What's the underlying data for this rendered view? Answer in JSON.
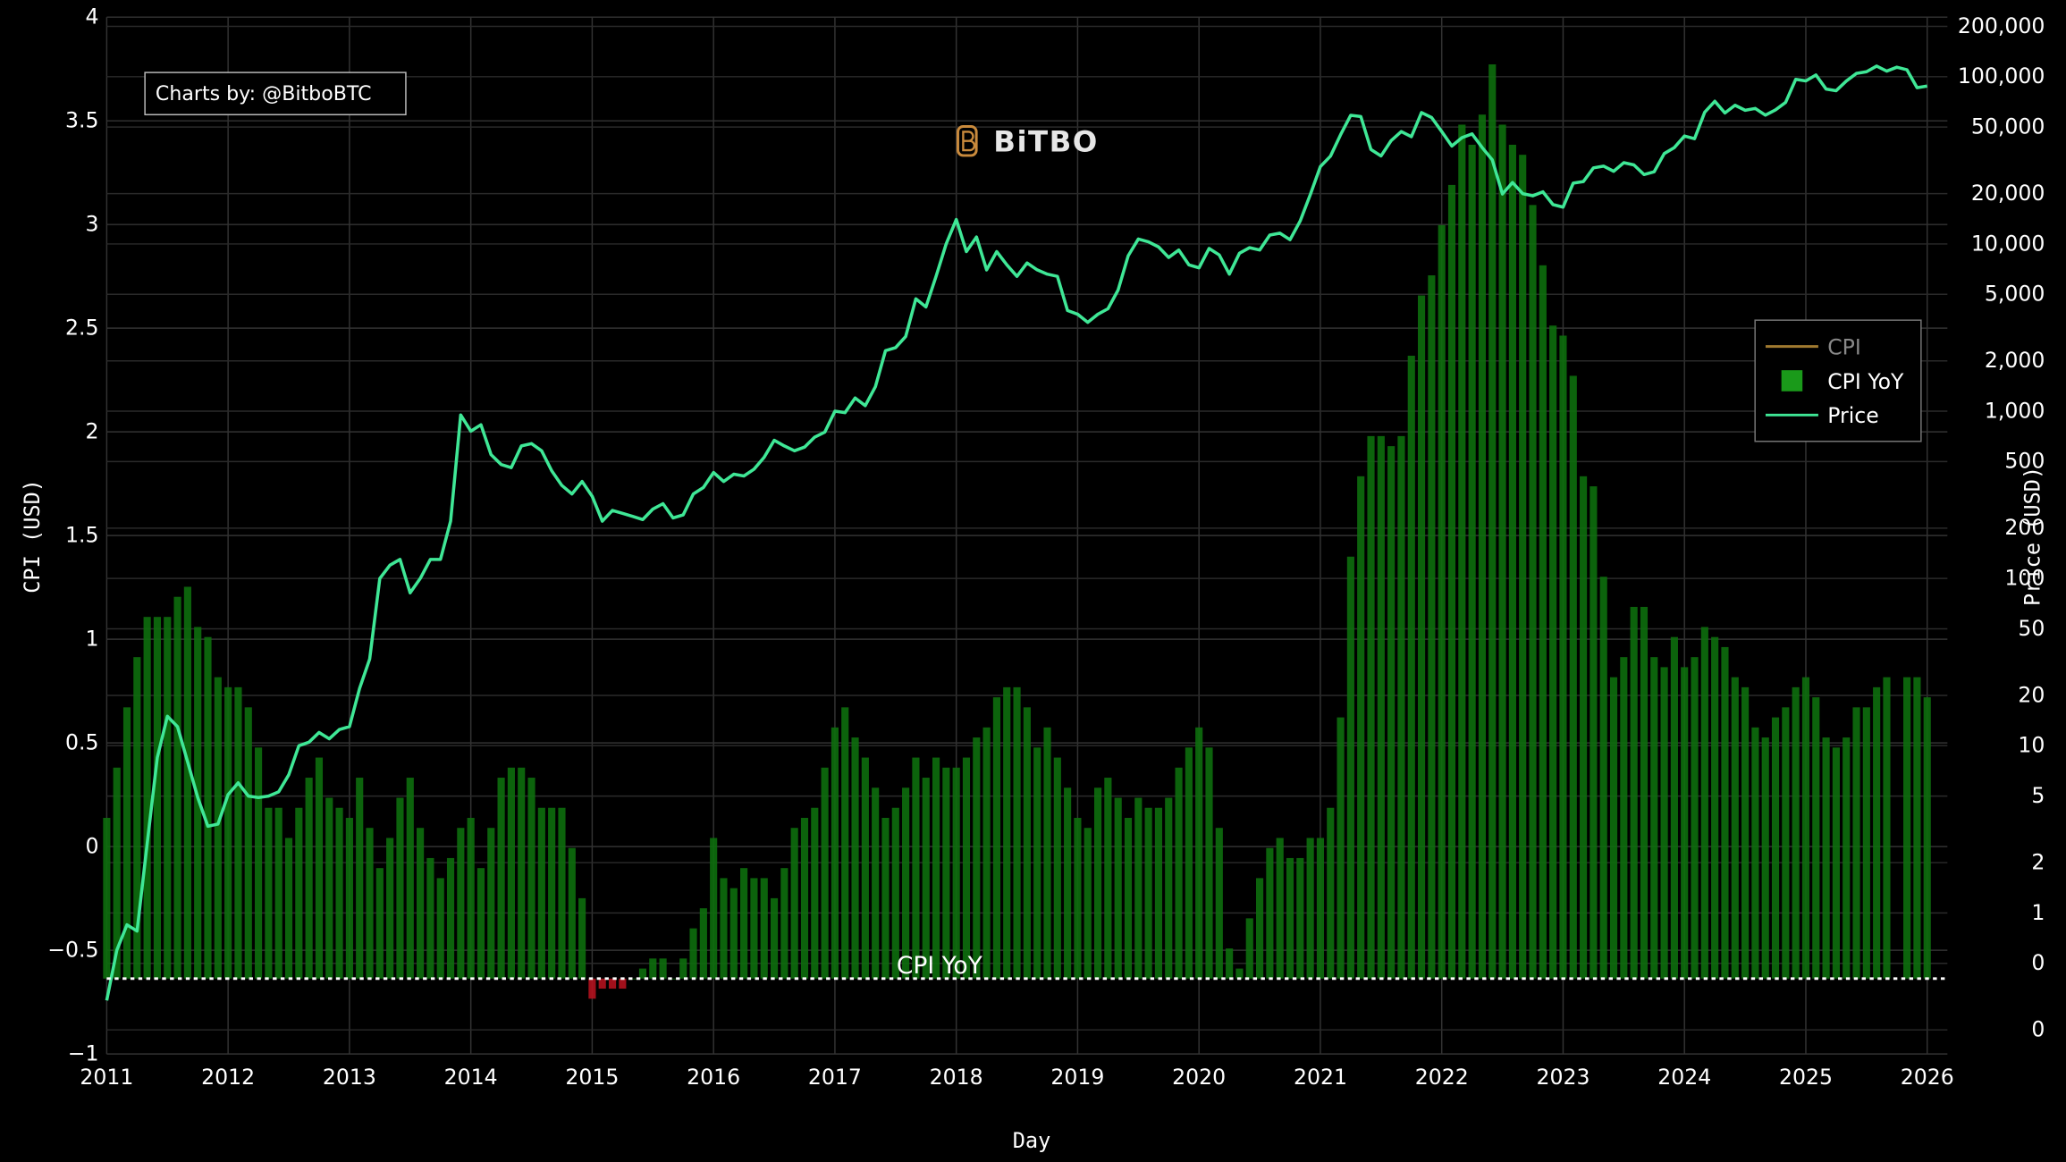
{
  "chart_data": {
    "type": "combo",
    "annotations": {
      "attribution": "Charts by: @BitboBTC",
      "logo": "BiTBO"
    },
    "x_label": "Day",
    "y_label": "CPI (USD)",
    "y2_label": "Price (USD)",
    "xlim": [
      "2011-01",
      "2026-03"
    ],
    "xticks": [
      "2011",
      "2012",
      "2013",
      "2014",
      "2015",
      "2016",
      "2017",
      "2018",
      "2019",
      "2020",
      "2021",
      "2022",
      "2023",
      "2024",
      "2025",
      "2026"
    ],
    "ylim": [
      -1,
      4
    ],
    "yticks": [
      {
        "value": -1,
        "label": "−1"
      },
      {
        "value": -0.5,
        "label": "−0.5"
      },
      0,
      0.5,
      1,
      1.5,
      2,
      2.5,
      3,
      3.5,
      4
    ],
    "y2scale": "log",
    "y2lim": [
      0.1436,
      227000
    ],
    "y2ticks": [
      {
        "value": 0.2,
        "label": "0"
      },
      {
        "value": 0.5,
        "label": "0"
      },
      1,
      2,
      5,
      10,
      20,
      50,
      100,
      200,
      500,
      {
        "value": 1000,
        "label": "1,000"
      },
      {
        "value": 2000,
        "label": "2,000"
      },
      {
        "value": 5000,
        "label": "5,000"
      },
      {
        "value": 10000,
        "label": "10,000"
      },
      {
        "value": 20000,
        "label": "20,000"
      },
      {
        "value": 50000,
        "label": "50,000"
      },
      {
        "value": 100000,
        "label": "100,000"
      },
      {
        "value": 200000,
        "label": "200,000"
      }
    ],
    "y3lim": [
      -0.75,
      9.57
    ],
    "hline": {
      "value": 0,
      "axis": "y3",
      "label": "CPI YoY"
    },
    "grid": true,
    "legend": "right",
    "x": [
      "2011-01",
      "2011-02",
      "2011-03",
      "2011-04",
      "2011-05",
      "2011-06",
      "2011-07",
      "2011-08",
      "2011-09",
      "2011-10",
      "2011-11",
      "2011-12",
      "2012-01",
      "2012-02",
      "2012-03",
      "2012-04",
      "2012-05",
      "2012-06",
      "2012-07",
      "2012-08",
      "2012-09",
      "2012-10",
      "2012-11",
      "2012-12",
      "2013-01",
      "2013-02",
      "2013-03",
      "2013-04",
      "2013-05",
      "2013-06",
      "2013-07",
      "2013-08",
      "2013-09",
      "2013-10",
      "2013-11",
      "2013-12",
      "2014-01",
      "2014-02",
      "2014-03",
      "2014-04",
      "2014-05",
      "2014-06",
      "2014-07",
      "2014-08",
      "2014-09",
      "2014-10",
      "2014-11",
      "2014-12",
      "2015-01",
      "2015-02",
      "2015-03",
      "2015-04",
      "2015-05",
      "2015-06",
      "2015-07",
      "2015-08",
      "2015-09",
      "2015-10",
      "2015-11",
      "2015-12",
      "2016-01",
      "2016-02",
      "2016-03",
      "2016-04",
      "2016-05",
      "2016-06",
      "2016-07",
      "2016-08",
      "2016-09",
      "2016-10",
      "2016-11",
      "2016-12",
      "2017-01",
      "2017-02",
      "2017-03",
      "2017-04",
      "2017-05",
      "2017-06",
      "2017-07",
      "2017-08",
      "2017-09",
      "2017-10",
      "2017-11",
      "2017-12",
      "2018-01",
      "2018-02",
      "2018-03",
      "2018-04",
      "2018-05",
      "2018-06",
      "2018-07",
      "2018-08",
      "2018-09",
      "2018-10",
      "2018-11",
      "2018-12",
      "2019-01",
      "2019-02",
      "2019-03",
      "2019-04",
      "2019-05",
      "2019-06",
      "2019-07",
      "2019-08",
      "2019-09",
      "2019-10",
      "2019-11",
      "2019-12",
      "2020-01",
      "2020-02",
      "2020-03",
      "2020-04",
      "2020-05",
      "2020-06",
      "2020-07",
      "2020-08",
      "2020-09",
      "2020-10",
      "2020-11",
      "2020-12",
      "2021-01",
      "2021-02",
      "2021-03",
      "2021-04",
      "2021-05",
      "2021-06",
      "2021-07",
      "2021-08",
      "2021-09",
      "2021-10",
      "2021-11",
      "2021-12",
      "2022-01",
      "2022-02",
      "2022-03",
      "2022-04",
      "2022-05",
      "2022-06",
      "2022-07",
      "2022-08",
      "2022-09",
      "2022-10",
      "2022-11",
      "2022-12",
      "2023-01",
      "2023-02",
      "2023-03",
      "2023-04",
      "2023-05",
      "2023-06",
      "2023-07",
      "2023-08",
      "2023-09",
      "2023-10",
      "2023-11",
      "2023-12",
      "2024-01",
      "2024-02",
      "2024-03",
      "2024-04",
      "2024-05",
      "2024-06",
      "2024-07",
      "2024-08",
      "2024-09",
      "2024-10",
      "2024-11",
      "2024-12",
      "2025-01",
      "2025-02",
      "2025-03",
      "2025-04",
      "2025-05",
      "2025-06",
      "2025-07",
      "2025-08",
      "2025-09",
      "2025-10",
      "2025-11",
      "2025-12",
      "2026-01"
    ],
    "series": [
      {
        "name": "CPI",
        "type": "line",
        "color": "#a07a30",
        "visible": false
      },
      {
        "name": "CPI YoY",
        "type": "bar",
        "axis": "y3",
        "color": "#0d6e0d",
        "negative_color": "#b3121e",
        "values": [
          1.6,
          2.1,
          2.7,
          3.2,
          3.6,
          3.6,
          3.6,
          3.8,
          3.9,
          3.5,
          3.4,
          3.0,
          2.9,
          2.9,
          2.7,
          2.3,
          1.7,
          1.7,
          1.4,
          1.7,
          2.0,
          2.2,
          1.8,
          1.7,
          1.6,
          2.0,
          1.5,
          1.1,
          1.4,
          1.8,
          2.0,
          1.5,
          1.2,
          1.0,
          1.2,
          1.5,
          1.6,
          1.1,
          1.5,
          2.0,
          2.1,
          2.1,
          2.0,
          1.7,
          1.7,
          1.7,
          1.3,
          0.8,
          -0.2,
          -0.1,
          -0.1,
          -0.1,
          0.0,
          0.1,
          0.2,
          0.2,
          0.0,
          0.2,
          0.5,
          0.7,
          1.4,
          1.0,
          0.9,
          1.1,
          1.0,
          1.0,
          0.8,
          1.1,
          1.5,
          1.6,
          1.7,
          2.1,
          2.5,
          2.7,
          2.4,
          2.2,
          1.9,
          1.6,
          1.7,
          1.9,
          2.2,
          2.0,
          2.2,
          2.1,
          2.1,
          2.2,
          2.4,
          2.5,
          2.8,
          2.9,
          2.9,
          2.7,
          2.3,
          2.5,
          2.2,
          1.9,
          1.6,
          1.5,
          1.9,
          2.0,
          1.8,
          1.6,
          1.8,
          1.7,
          1.7,
          1.8,
          2.1,
          2.3,
          2.5,
          2.3,
          1.5,
          0.3,
          0.1,
          0.6,
          1.0,
          1.3,
          1.4,
          1.2,
          1.2,
          1.4,
          1.4,
          1.7,
          2.6,
          4.2,
          5.0,
          5.4,
          5.4,
          5.3,
          5.4,
          6.2,
          6.8,
          7.0,
          7.5,
          7.9,
          8.5,
          8.3,
          8.6,
          9.1,
          8.5,
          8.3,
          8.2,
          7.7,
          7.1,
          6.5,
          6.4,
          6.0,
          5.0,
          4.9,
          4.0,
          3.0,
          3.2,
          3.7,
          3.7,
          3.2,
          3.1,
          3.4,
          3.1,
          3.2,
          3.5,
          3.4,
          3.3,
          3.0,
          2.9,
          2.5,
          2.4,
          2.6,
          2.7,
          2.9,
          3.0,
          2.8,
          2.4,
          2.3,
          2.4,
          2.7,
          2.7,
          2.9,
          3.0,
          null,
          3.0,
          3.0,
          2.8
        ]
      },
      {
        "name": "Price",
        "type": "line",
        "axis": "y2",
        "color": "#3fe796",
        "values": [
          0.3,
          0.6,
          0.85,
          0.78,
          2.6,
          8.5,
          15,
          13,
          8,
          4.9,
          3.3,
          3.4,
          5.1,
          6.0,
          5.0,
          4.9,
          5.0,
          5.3,
          6.7,
          10,
          10.5,
          12,
          11,
          12.5,
          13,
          22,
          33,
          100,
          120,
          130,
          82,
          100,
          130,
          130,
          220,
          950,
          760,
          830,
          550,
          480,
          460,
          620,
          640,
          580,
          440,
          360,
          320,
          380,
          310,
          220,
          255,
          245,
          235,
          225,
          260,
          280,
          230,
          240,
          320,
          350,
          430,
          380,
          420,
          410,
          450,
          530,
          670,
          620,
          580,
          610,
          700,
          750,
          1000,
          980,
          1200,
          1080,
          1400,
          2300,
          2400,
          2800,
          4700,
          4200,
          6400,
          10000,
          14000,
          9000,
          11000,
          7000,
          9000,
          7500,
          6400,
          7700,
          7000,
          6600,
          6400,
          4000,
          3800,
          3400,
          3800,
          4100,
          5300,
          8500,
          10700,
          10300,
          9600,
          8300,
          9200,
          7500,
          7200,
          9400,
          8600,
          6600,
          8800,
          9500,
          9200,
          11300,
          11600,
          10600,
          13700,
          19700,
          29000,
          33500,
          45000,
          58800,
          57800,
          36700,
          33600,
          41500,
          47000,
          43800,
          61000,
          57000,
          47000,
          38500,
          43200,
          45500,
          37700,
          31800,
          19900,
          23300,
          20000,
          19400,
          20500,
          17200,
          16600,
          23100,
          23600,
          28500,
          29200,
          27200,
          30600,
          29700,
          26000,
          27000,
          34700,
          37700,
          44200,
          42600,
          61300,
          71300,
          60700,
          67500,
          63000,
          64600,
          58900,
          63300,
          70200,
          96400,
          94400,
          102400,
          84400,
          82500,
          94200,
          104600,
          107100,
          115700,
          108000,
          114000,
          110000,
          86000,
          88000
        ]
      }
    ]
  }
}
